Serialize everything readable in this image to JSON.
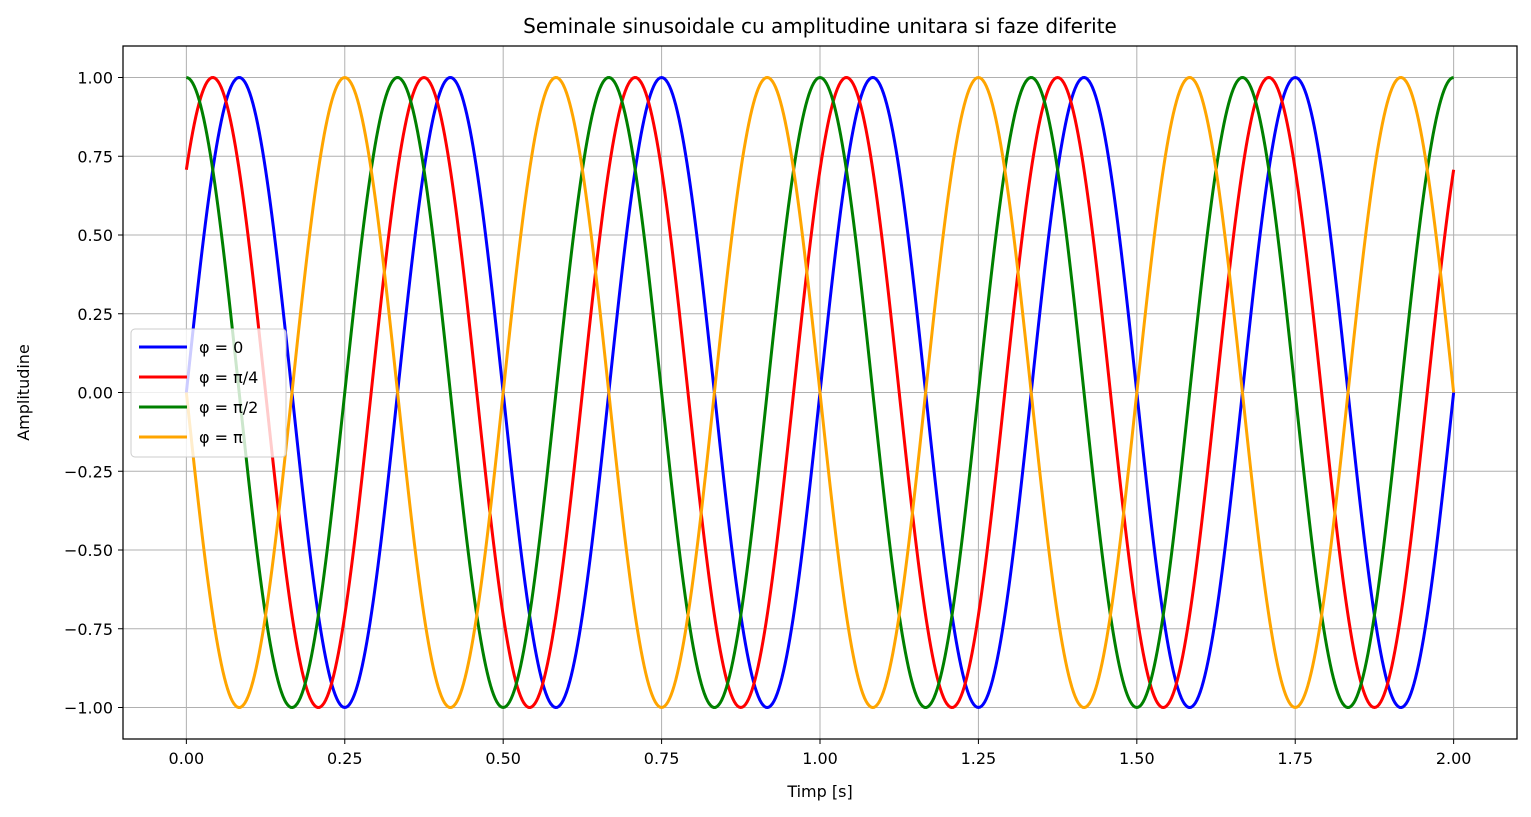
{
  "chart_data": {
    "type": "line",
    "title": "Seminale sinusoidale cu amplitudine unitara si faze diferite",
    "xlabel": "Timp [s]",
    "ylabel": "Amplitudine",
    "xlim": [
      -0.1,
      2.1
    ],
    "ylim": [
      -1.1,
      1.1
    ],
    "x_ticks": [
      "0.00",
      "0.25",
      "0.50",
      "0.75",
      "1.00",
      "1.25",
      "1.50",
      "1.75",
      "2.00"
    ],
    "y_ticks": [
      "1.00",
      "0.75",
      "0.50",
      "0.25",
      "0.00",
      "−0.25",
      "−0.50",
      "−0.75",
      "−1.00"
    ],
    "grid": true,
    "legend_position": "center-left",
    "x_range": [
      0,
      2
    ],
    "frequency_hz": 3,
    "amplitude": 1,
    "series": [
      {
        "name": "φ = 0",
        "phase": 0,
        "color": "#0000ff"
      },
      {
        "name": "φ = π/4",
        "phase": 0.7853981634,
        "color": "#ff0000"
      },
      {
        "name": "φ = π/2",
        "phase": 1.5707963268,
        "color": "#008000"
      },
      {
        "name": "φ = π",
        "phase": 3.1415926536,
        "color": "#ffa500"
      }
    ]
  }
}
